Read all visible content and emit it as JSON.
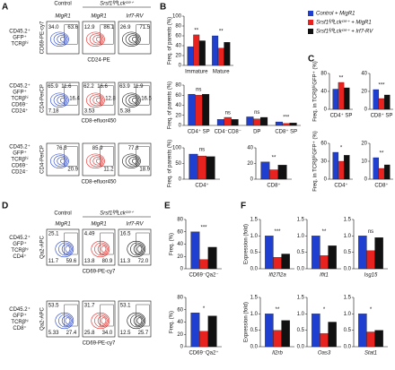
{
  "panel_letters": [
    "A",
    "B",
    "C",
    "D",
    "E",
    "F"
  ],
  "legend": [
    {
      "name": "Control + MigR1",
      "color": "#1f3fd0"
    },
    {
      "name": "Srsf1ᶠˡ/ᶠˡLckᶜʳᵉ⁺ + MigR1",
      "color": "#e8231f"
    },
    {
      "name": "Srsf1ᶠˡ/ᶠˡLckᶜʳᵉ⁺ + Irf7-RV",
      "color": "#111111"
    }
  ],
  "flow": [
    {
      "columns": [
        "Control",
        "Srsf1ᶠˡ/ᶠˡLckᶜʳᵉ⁺"
      ],
      "plot_titles": [
        "MigR1",
        "MigR1",
        "Irf7-RV"
      ],
      "rows": [
        {
          "label": [
            "CD45.2⁺",
            "GFP⁺",
            "TCRβʰⁱ"
          ],
          "y_axis": "CD69-PE-cy7",
          "x_axis": "CD24-PE",
          "numbers": [
            [
              "34.0",
              "63.6"
            ],
            [
              "12.9",
              "86.1"
            ],
            [
              "26.9",
              "71.5"
            ]
          ]
        },
        {
          "label": [
            "CD45.2⁺",
            "GFP⁺",
            "TCRβʰⁱ",
            "CD69⁻",
            "CD24⁺"
          ],
          "y_axis": "CD4-PerCP",
          "x_axis": "CD8-efluor450",
          "numbers": [
            [
              "65.9",
              "11.6",
              "16.4",
              "7.18"
            ],
            [
              "62.2",
              "16.6",
              "12.8",
              "3.53"
            ],
            [
              "63.9",
              "11.9",
              "16.5",
              "5.38"
            ]
          ]
        },
        {
          "label": [
            "CD45.2⁺",
            "GFP⁺",
            "TCRβʰⁱ",
            "CD69⁻",
            "CD24⁻"
          ],
          "y_axis": "CD4-PerCP",
          "x_axis": "CD8-efluor450",
          "numbers": [
            [
              "76.5",
              "20.9"
            ],
            [
              "85.9",
              "11.2"
            ],
            [
              "77.8",
              "18.9"
            ]
          ]
        }
      ]
    },
    {
      "columns": [
        "Control",
        "Srsf1ᶠˡ/ᶠˡLckᶜʳᵉ⁺"
      ],
      "plot_titles": [
        "MigR1",
        "MigR1",
        "Irf7-RV"
      ],
      "rows": [
        {
          "label": [
            "CD45.2⁺",
            "GFP⁺",
            "TCRβʰⁱ",
            "CD4⁺"
          ],
          "y_axis": "Qa2-APC",
          "x_axis": "CD69-PE-cy7",
          "numbers": [
            [
              "25.1",
              "11.7",
              "59.6"
            ],
            [
              "4.49",
              "13.8",
              "80.9"
            ],
            [
              "16.5",
              "11.3",
              "72.0"
            ]
          ]
        },
        {
          "label": [
            "CD45.2⁺",
            "GFP⁺",
            "TCRβʰⁱ",
            "CD8⁺"
          ],
          "y_axis": "Qa2-APC",
          "x_axis": "CD69-PE-cy7",
          "numbers": [
            [
              "53.5",
              "5.33",
              "27.4"
            ],
            [
              "31.7",
              "25.8",
              "34.0"
            ],
            [
              "53.1",
              "12.5",
              "25.7"
            ]
          ]
        }
      ]
    }
  ],
  "chart_data": [
    {
      "type": "bar",
      "ylabel": "Freq. of parents (%)",
      "categories": [
        "Immature",
        "Mature"
      ],
      "series": [
        {
          "values": [
            38,
            60
          ]
        },
        {
          "values": [
            62,
            35
          ]
        },
        {
          "values": [
            50,
            47
          ]
        }
      ],
      "ylim": [
        0,
        100
      ],
      "yticks": [
        0,
        20,
        40,
        60,
        80,
        100
      ],
      "annotations": [
        "**",
        "**"
      ]
    },
    {
      "type": "bar",
      "ylabel": "Freq. of parents (%)",
      "categories": [
        "CD4⁺ SP",
        "CD4⁻CD8⁻",
        "DP",
        "CD8⁺ SP"
      ],
      "series": [
        {
          "values": [
            62,
            12,
            17,
            7
          ]
        },
        {
          "values": [
            60,
            16,
            13,
            4
          ]
        },
        {
          "values": [
            62,
            12,
            16,
            5
          ]
        }
      ],
      "ylim": [
        0,
        80
      ],
      "yticks": [
        0,
        20,
        40,
        60,
        80
      ],
      "annotations": [
        "ns",
        "ns",
        "ns",
        "***"
      ]
    },
    {
      "type": "bar",
      "ylabel": "Freq. of parents (%)",
      "categories": [
        "CD4⁺"
      ],
      "series": [
        {
          "values": [
            80
          ]
        },
        {
          "values": [
            74
          ]
        },
        {
          "values": [
            72
          ]
        }
      ],
      "ylim": [
        0,
        100
      ],
      "yticks": [
        0,
        50,
        100
      ],
      "annotations": [
        "ns"
      ]
    },
    {
      "type": "bar",
      "categories": [
        "CD8⁺"
      ],
      "series": [
        {
          "values": [
            22
          ]
        },
        {
          "values": [
            12
          ]
        },
        {
          "values": [
            18
          ]
        }
      ],
      "ylim": [
        0,
        40
      ],
      "yticks": [
        0,
        20,
        40
      ],
      "annotations": [
        "**"
      ]
    },
    {
      "type": "bar",
      "ylabel": "Freq. in TCRβʰⁱGFP⁺ (%)",
      "categories": [
        "CD4⁺ SP"
      ],
      "series": [
        {
          "values": [
            45
          ]
        },
        {
          "values": [
            60
          ]
        },
        {
          "values": [
            48
          ]
        }
      ],
      "ylim": [
        0,
        80
      ],
      "yticks": [
        0,
        40,
        80
      ],
      "annotations": [
        "**"
      ]
    },
    {
      "type": "bar",
      "categories": [
        "CD8⁺ SP"
      ],
      "series": [
        {
          "values": [
            22
          ]
        },
        {
          "values": [
            12
          ]
        },
        {
          "values": [
            16
          ]
        }
      ],
      "ylim": [
        0,
        40
      ],
      "yticks": [
        0,
        20,
        40
      ],
      "annotations": [
        "***"
      ]
    },
    {
      "type": "bar",
      "ylabel": "Freq. in TCRβʰⁱGFP⁺ (%)",
      "categories": [
        "CD4⁺"
      ],
      "series": [
        {
          "values": [
            45
          ]
        },
        {
          "values": [
            30
          ]
        },
        {
          "values": [
            40
          ]
        }
      ],
      "ylim": [
        0,
        60
      ],
      "yticks": [
        0,
        30,
        60
      ],
      "annotations": [
        "*"
      ]
    },
    {
      "type": "bar",
      "categories": [
        "CD8⁺"
      ],
      "series": [
        {
          "values": [
            12
          ]
        },
        {
          "values": [
            6
          ]
        },
        {
          "values": [
            8
          ]
        }
      ],
      "ylim": [
        0,
        20
      ],
      "yticks": [
        0,
        10,
        20
      ],
      "annotations": [
        "**"
      ]
    },
    {
      "type": "bar",
      "ylabel": "Freq. (%)",
      "categories": [
        "CD69⁻Qa2⁻"
      ],
      "series": [
        {
          "values": [
            60
          ]
        },
        {
          "values": [
            15
          ]
        },
        {
          "values": [
            35
          ]
        }
      ],
      "ylim": [
        0,
        80
      ],
      "yticks": [
        0,
        20,
        40,
        60,
        80
      ],
      "annotations": [
        "***"
      ]
    },
    {
      "type": "bar",
      "ylabel": "Freq. (%)",
      "categories": [
        "CD69⁻Qa2⁺"
      ],
      "series": [
        {
          "values": [
            55
          ]
        },
        {
          "values": [
            25
          ]
        },
        {
          "values": [
            50
          ]
        }
      ],
      "ylim": [
        0,
        80
      ],
      "yticks": [
        0,
        20,
        40,
        60,
        80
      ],
      "annotations": [
        "*"
      ]
    },
    {
      "type": "bar",
      "ylabel": "Expression (fold)",
      "categories": [
        "Ifi27l2a"
      ],
      "series": [
        {
          "values": [
            1
          ]
        },
        {
          "values": [
            0.35
          ]
        },
        {
          "values": [
            0.45
          ]
        }
      ],
      "ylim": [
        0,
        1.5
      ],
      "yticks": [
        {
          "value": 0,
          "label": "0.0"
        },
        0.5,
        {
          "value": 1,
          "label": "1.0"
        },
        1.5
      ],
      "annotations": [
        "***"
      ]
    },
    {
      "type": "bar",
      "categories": [
        "Ifit1"
      ],
      "series": [
        {
          "values": [
            1
          ]
        },
        {
          "values": [
            0.4
          ]
        },
        {
          "values": [
            0.7
          ]
        }
      ],
      "ylim": [
        0,
        1.5
      ],
      "yticks": [
        {
          "value": 0,
          "label": "0.0"
        },
        0.5,
        {
          "value": 1,
          "label": "1.0"
        },
        1.5
      ],
      "annotations": [
        "**"
      ]
    },
    {
      "type": "bar",
      "categories": [
        "Isg15"
      ],
      "series": [
        {
          "values": [
            1
          ]
        },
        {
          "values": [
            0.55
          ]
        },
        {
          "values": [
            0.95
          ]
        }
      ],
      "ylim": [
        0,
        1.5
      ],
      "yticks": [
        {
          "value": 0,
          "label": "0.0"
        },
        0.5,
        {
          "value": 1,
          "label": "1.0"
        },
        1.5
      ],
      "annotations": [
        "ns"
      ]
    },
    {
      "type": "bar",
      "ylabel": "Expression (fold)",
      "categories": [
        "Il2rb"
      ],
      "series": [
        {
          "values": [
            1
          ]
        },
        {
          "values": [
            0.5
          ]
        },
        {
          "values": [
            0.8
          ]
        }
      ],
      "ylim": [
        0,
        1.5
      ],
      "yticks": [
        {
          "value": 0,
          "label": "0.0"
        },
        0.5,
        {
          "value": 1,
          "label": "1.0"
        },
        1.5
      ],
      "annotations": [
        "**"
      ]
    },
    {
      "type": "bar",
      "categories": [
        "Oas3"
      ],
      "series": [
        {
          "values": [
            1
          ]
        },
        {
          "values": [
            0.4
          ]
        },
        {
          "values": [
            0.75
          ]
        }
      ],
      "ylim": [
        0,
        1.5
      ],
      "yticks": [
        {
          "value": 0,
          "label": "0.0"
        },
        0.5,
        {
          "value": 1,
          "label": "1.0"
        },
        1.5
      ],
      "annotations": [
        "*"
      ]
    },
    {
      "type": "bar",
      "categories": [
        "Stat1"
      ],
      "series": [
        {
          "values": [
            1
          ]
        },
        {
          "values": [
            0.45
          ]
        },
        {
          "values": [
            0.5
          ]
        }
      ],
      "ylim": [
        0,
        1.5
      ],
      "yticks": [
        {
          "value": 0,
          "label": "0.0"
        },
        0.5,
        {
          "value": 1,
          "label": "1.0"
        },
        1.5
      ],
      "annotations": [
        "*"
      ]
    }
  ]
}
